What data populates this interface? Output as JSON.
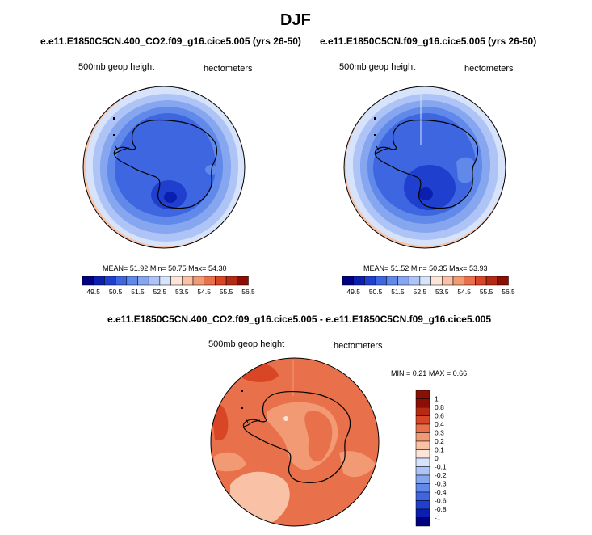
{
  "chart_data": {
    "type": "heatmap",
    "title": "DJF",
    "panels": [
      {
        "id": "co2",
        "case": "e.e11.E1850C5CN.400_CO2.f09_g16.cice5.005 (yrs 26-50)",
        "field": "500mb geop height",
        "units": "hectometers",
        "stats": {
          "mean_label": "MEAN=",
          "mean": "51.92",
          "min_label": "Min=",
          "min": "50.75",
          "max_label": "Max=",
          "max": "54.30"
        },
        "colorbar_labels": [
          "49.5",
          "50.5",
          "51.5",
          "52.5",
          "53.5",
          "54.5",
          "55.5",
          "56.5"
        ]
      },
      {
        "id": "ctrl",
        "case": "e.e11.E1850C5CN.f09_g16.cice5.005 (yrs 26-50)",
        "field": "500mb geop height",
        "units": "hectometers",
        "stats": {
          "mean_label": "MEAN=",
          "mean": "51.52",
          "min_label": "Min=",
          "min": "50.35",
          "max_label": "Max=",
          "max": "53.93"
        },
        "colorbar_labels": [
          "49.5",
          "50.5",
          "51.5",
          "52.5",
          "53.5",
          "54.5",
          "55.5",
          "56.5"
        ]
      },
      {
        "id": "diff",
        "case": "e.e11.E1850C5CN.400_CO2.f09_g16.cice5.005 - e.e11.E1850C5CN.f09_g16.cice5.005",
        "field": "500mb geop height",
        "units": "hectometers",
        "stats": {
          "min_label": "MIN =",
          "min": "0.21",
          "max_label": "MAX =",
          "max": "0.66"
        },
        "colorbar_labels": [
          "1",
          "0.8",
          "0.6",
          "0.4",
          "0.3",
          "0.2",
          "0.1",
          "0",
          "-0.1",
          "-0.2",
          "-0.3",
          "-0.4",
          "-0.6",
          "-0.8",
          "-1"
        ]
      }
    ],
    "colors": {
      "abs_scale": [
        "#000080",
        "#0a1fb0",
        "#1f40cf",
        "#3d66e0",
        "#6089ea",
        "#86a6f0",
        "#aec4f6",
        "#d6e3fb",
        "#fde4d8",
        "#f9c1a5",
        "#f29a74",
        "#e8704a",
        "#d94626",
        "#b52a12",
        "#8b0f05"
      ],
      "diff_scale": [
        "#000080",
        "#0a1fb0",
        "#1f40cf",
        "#3d66e0",
        "#6089ea",
        "#86a6f0",
        "#aec4f6",
        "#d6e3fb",
        "#fde4d8",
        "#f9c1a5",
        "#f29a74",
        "#e8704a",
        "#d94626",
        "#b52a12",
        "#8b0f05"
      ]
    }
  }
}
